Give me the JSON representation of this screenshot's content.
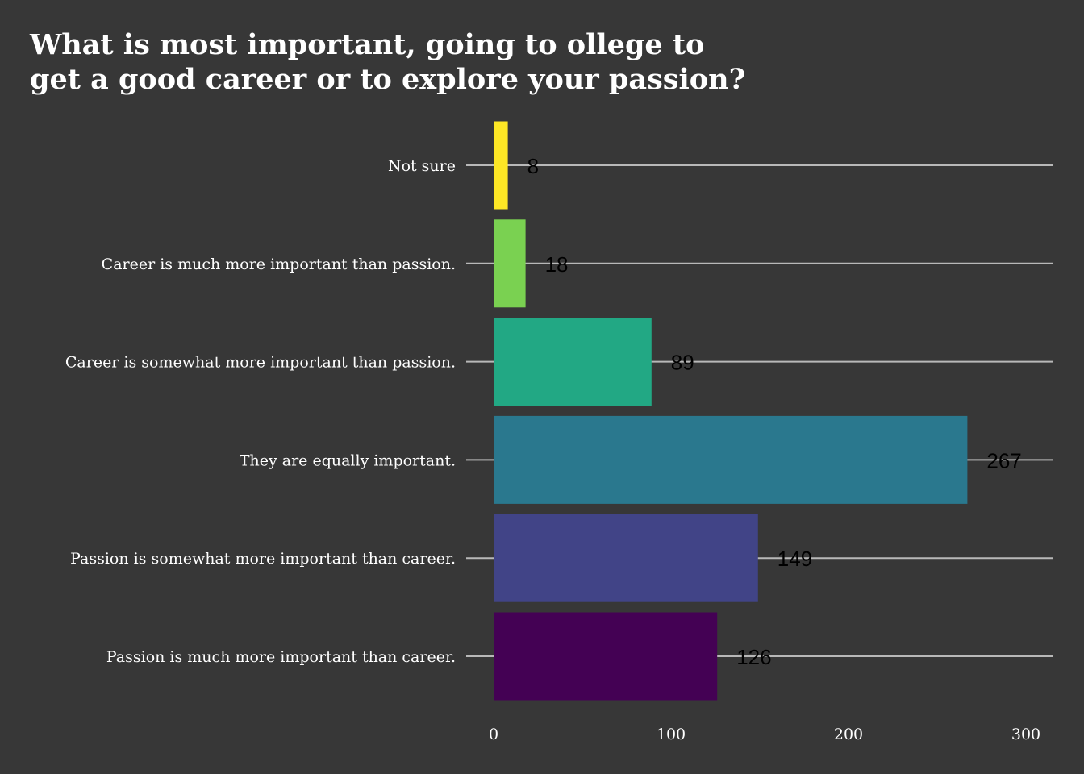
{
  "chart_data": {
    "type": "bar",
    "orientation": "horizontal",
    "title_lines": [
      "What is most important, going to ollege to",
      "get a good career or to explore your passion?"
    ],
    "categories": [
      "Not sure",
      "Career is much more important than passion.",
      "Career is somewhat more important than passion.",
      "They are equally important.",
      "Passion is somewhat more important than career.",
      "Passion is much more important than career."
    ],
    "values": [
      8,
      18,
      89,
      267,
      149,
      126
    ],
    "colors": [
      "#fde725",
      "#7ad151",
      "#22a884",
      "#2a788e",
      "#414487",
      "#440154"
    ],
    "xlim": [
      0,
      315
    ],
    "xticks": [
      "0",
      "100",
      "200",
      "300"
    ],
    "xtick_values": [
      0,
      100,
      200,
      300
    ],
    "grid": "horizontal-at-categories",
    "background": "#373737",
    "legend": "none"
  }
}
